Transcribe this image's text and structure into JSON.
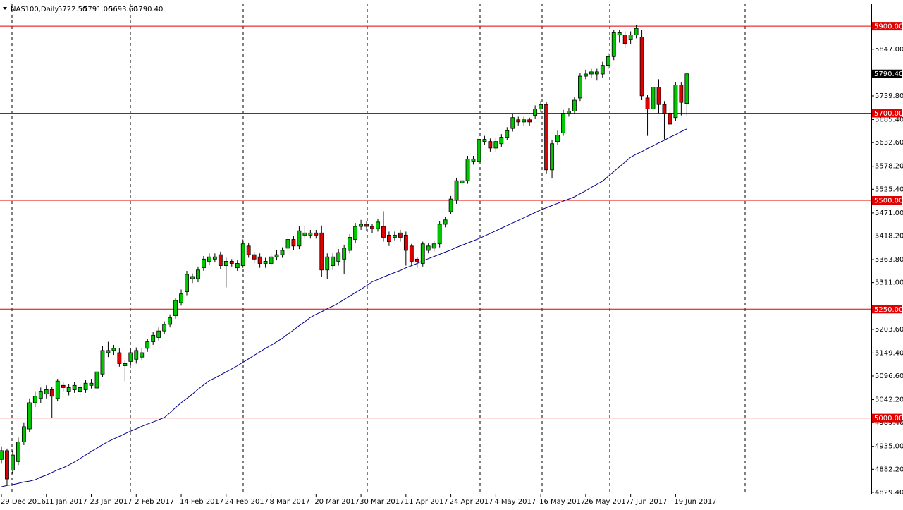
{
  "chart_data": {
    "type": "candlestick",
    "title": "NAS100,Daily",
    "header_labels": [
      "5722.50",
      "5791.00",
      "5693.60",
      "5790.40"
    ],
    "categories": [
      "29 Dec 2016",
      null,
      null,
      null,
      null,
      null,
      null,
      null,
      "11 Jan 2017",
      null,
      null,
      null,
      null,
      null,
      null,
      null,
      "23 Jan 2017",
      null,
      null,
      null,
      null,
      null,
      null,
      null,
      "2 Feb 2017",
      null,
      null,
      null,
      null,
      null,
      null,
      null,
      "14 Feb 2017",
      null,
      null,
      null,
      null,
      null,
      null,
      null,
      "24 Feb 2017",
      null,
      null,
      null,
      null,
      null,
      null,
      null,
      "8 Mar 2017",
      null,
      null,
      null,
      null,
      null,
      null,
      null,
      "20 Mar 2017",
      null,
      null,
      null,
      null,
      null,
      null,
      null,
      "30 Mar 2017",
      null,
      null,
      null,
      null,
      null,
      null,
      null,
      "11 Apr 2017",
      null,
      null,
      null,
      null,
      null,
      null,
      null,
      "24 Apr 2017",
      null,
      null,
      null,
      null,
      null,
      null,
      null,
      "4 May 2017",
      null,
      null,
      null,
      null,
      null,
      null,
      null,
      "16 May 2017",
      null,
      null,
      null,
      null,
      null,
      null,
      null,
      "26 May 2017",
      null,
      null,
      null,
      null,
      null,
      null,
      null,
      "7 Jun 2017",
      null,
      null,
      null,
      null,
      null,
      null,
      null,
      "19 Jun 2017",
      null,
      null
    ],
    "open": [
      4905,
      4925,
      4880,
      4900,
      4945,
      4975,
      5035,
      5045,
      5055,
      5065,
      5045,
      5075,
      5060,
      5065,
      5060,
      5065,
      5075,
      5069,
      5101,
      5150,
      5155,
      5150,
      5120,
      5130,
      5135,
      5140,
      5160,
      5175,
      5185,
      5200,
      5215,
      5235,
      5265,
      5290,
      5320,
      5320,
      5345,
      5360,
      5365,
      5375,
      5350,
      5360,
      5345,
      5350,
      5395,
      5375,
      5370,
      5355,
      5355,
      5370,
      5375,
      5390,
      5410,
      5395,
      5420,
      5420,
      5425,
      5425,
      5340,
      5350,
      5360,
      5365,
      5385,
      5410,
      5440,
      5445,
      5440,
      5435,
      5440,
      5420,
      5415,
      5425,
      5420,
      5395,
      5365,
      5355,
      5385,
      5390,
      5400,
      5445,
      5474,
      5500,
      5540,
      5545,
      5590,
      5590,
      5635,
      5635,
      5620,
      5630,
      5645,
      5665,
      5685,
      5680,
      5685,
      5695,
      5710,
      5720,
      5570,
      5635,
      5655,
      5700,
      5705,
      5735,
      5785,
      5790,
      5790,
      5790,
      5810,
      5830,
      5880,
      5880,
      5870,
      5880,
      5875,
      5735,
      5710,
      5760,
      5720,
      5700,
      5690,
      5765,
      5722.5
    ],
    "high": [
      4935,
      4930,
      4925,
      4955,
      4990,
      5045,
      5060,
      5070,
      5075,
      5072,
      5090,
      5082,
      5078,
      5082,
      5078,
      5088,
      5090,
      5112,
      5165,
      5175,
      5168,
      5160,
      5132,
      5160,
      5162,
      5160,
      5182,
      5198,
      5208,
      5222,
      5238,
      5275,
      5295,
      5338,
      5332,
      5348,
      5372,
      5378,
      5378,
      5382,
      5368,
      5365,
      5362,
      5410,
      5402,
      5382,
      5378,
      5368,
      5378,
      5385,
      5392,
      5418,
      5418,
      5440,
      5440,
      5432,
      5432,
      5442,
      5378,
      5380,
      5388,
      5398,
      5422,
      5448,
      5455,
      5452,
      5445,
      5458,
      5475,
      5428,
      5428,
      5432,
      5428,
      5400,
      5370,
      5405,
      5402,
      5408,
      5452,
      5462,
      5510,
      5552,
      5552,
      5602,
      5602,
      5648,
      5648,
      5642,
      5642,
      5652,
      5668,
      5698,
      5692,
      5692,
      5690,
      5718,
      5728,
      5725,
      5638,
      5660,
      5708,
      5712,
      5738,
      5792,
      5800,
      5802,
      5802,
      5818,
      5838,
      5892,
      5892,
      5888,
      5888,
      5902,
      5892,
      5742,
      5770,
      5778,
      5728,
      5708,
      5772,
      5772,
      5791
    ],
    "low": [
      4895,
      4845,
      4872,
      4892,
      4938,
      4968,
      5025,
      5035,
      5045,
      5000,
      5038,
      5060,
      5052,
      5058,
      5052,
      5058,
      5068,
      5062,
      5095,
      5140,
      5145,
      5118,
      5085,
      5122,
      5125,
      5132,
      5152,
      5168,
      5178,
      5192,
      5208,
      5228,
      5258,
      5282,
      5310,
      5312,
      5338,
      5352,
      5358,
      5342,
      5300,
      5348,
      5338,
      5345,
      5368,
      5355,
      5345,
      5345,
      5348,
      5362,
      5368,
      5385,
      5385,
      5388,
      5412,
      5412,
      5412,
      5325,
      5320,
      5340,
      5350,
      5330,
      5378,
      5402,
      5432,
      5430,
      5425,
      5428,
      5405,
      5395,
      5408,
      5405,
      5350,
      5350,
      5345,
      5348,
      5378,
      5382,
      5392,
      5438,
      5468,
      5492,
      5532,
      5538,
      5582,
      5582,
      5628,
      5612,
      5612,
      5622,
      5638,
      5658,
      5672,
      5672,
      5672,
      5688,
      5702,
      5562,
      5550,
      5628,
      5648,
      5692,
      5698,
      5728,
      5778,
      5782,
      5775,
      5782,
      5802,
      5822,
      5862,
      5850,
      5858,
      5872,
      5730,
      5648,
      5702,
      5700,
      5640,
      5665,
      5682,
      5695,
      5693.6
    ],
    "close": [
      4925,
      4860,
      4915,
      4945,
      4980,
      5035,
      5050,
      5060,
      5065,
      5050,
      5085,
      5070,
      5070,
      5075,
      5070,
      5080,
      5080,
      5106,
      5155,
      5155,
      5160,
      5125,
      5125,
      5150,
      5155,
      5150,
      5175,
      5190,
      5200,
      5215,
      5230,
      5270,
      5285,
      5330,
      5325,
      5340,
      5365,
      5370,
      5370,
      5350,
      5360,
      5355,
      5355,
      5400,
      5375,
      5365,
      5355,
      5360,
      5370,
      5375,
      5385,
      5410,
      5395,
      5430,
      5425,
      5425,
      5420,
      5340,
      5370,
      5370,
      5380,
      5390,
      5415,
      5440,
      5445,
      5440,
      5435,
      5450,
      5415,
      5405,
      5420,
      5415,
      5385,
      5360,
      5360,
      5400,
      5395,
      5400,
      5445,
      5455,
      5503,
      5545,
      5545,
      5595,
      5595,
      5640,
      5640,
      5620,
      5635,
      5645,
      5660,
      5690,
      5680,
      5685,
      5680,
      5710,
      5720,
      5570,
      5630,
      5650,
      5700,
      5705,
      5730,
      5785,
      5790,
      5795,
      5795,
      5810,
      5830,
      5885,
      5885,
      5860,
      5880,
      5895,
      5740,
      5710,
      5760,
      5720,
      5700,
      5675,
      5765,
      5725,
      5790.4
    ],
    "up_color": "#00c800",
    "down_color": "#e00000",
    "ma": {
      "color": "#00008b",
      "values": [
        4842,
        4845,
        4847,
        4850,
        4853,
        4855,
        4858,
        4864,
        4869,
        4875,
        4881,
        4886,
        4892,
        4899,
        4907,
        4915,
        4923,
        4931,
        4939,
        4946,
        4952,
        4958,
        4964,
        4970,
        4975,
        4981,
        4986,
        4991,
        4996,
        5001,
        5012,
        5024,
        5035,
        5045,
        5055,
        5066,
        5076,
        5086,
        5092,
        5099,
        5106,
        5113,
        5120,
        5128,
        5136,
        5144,
        5152,
        5160,
        5167,
        5175,
        5183,
        5193,
        5202,
        5212,
        5221,
        5231,
        5238,
        5244,
        5251,
        5257,
        5264,
        5272,
        5280,
        5288,
        5296,
        5304,
        5313,
        5318,
        5324,
        5329,
        5334,
        5339,
        5345,
        5350,
        5355,
        5361,
        5366,
        5371,
        5376,
        5381,
        5386,
        5392,
        5397,
        5402,
        5407,
        5412,
        5418,
        5424,
        5430,
        5436,
        5442,
        5448,
        5454,
        5460,
        5466,
        5472,
        5478,
        5483,
        5488,
        5493,
        5498,
        5503,
        5508,
        5515,
        5522,
        5530,
        5537,
        5544,
        5555,
        5566,
        5577,
        5588,
        5599,
        5606,
        5612,
        5619,
        5625,
        5632,
        5638,
        5645,
        5651,
        5658,
        5664
      ]
    },
    "ylim": [
      4826,
      5952
    ],
    "yticks": [
      {
        "value": 5847,
        "label": "5847.00"
      },
      {
        "value": 5739.8,
        "label": "5739.80"
      },
      {
        "value": 5685.4,
        "label": "5685.40"
      },
      {
        "value": 5632.6,
        "label": "5632.60"
      },
      {
        "value": 5578.2,
        "label": "5578.20"
      },
      {
        "value": 5525.4,
        "label": "5525.40"
      },
      {
        "value": 5471,
        "label": "5471.00"
      },
      {
        "value": 5418.2,
        "label": "5418.20"
      },
      {
        "value": 5363.8,
        "label": "5363.80"
      },
      {
        "value": 5311,
        "label": "5311.00"
      },
      {
        "value": 5203.6,
        "label": "5203.60"
      },
      {
        "value": 5149.4,
        "label": "5149.40"
      },
      {
        "value": 5096.6,
        "label": "5096.60"
      },
      {
        "value": 5042.2,
        "label": "5042.20"
      },
      {
        "value": 4989.4,
        "label": "4989.40"
      },
      {
        "value": 4935,
        "label": "4935.00"
      },
      {
        "value": 4882.2,
        "label": "4882.20"
      },
      {
        "value": 4829.4,
        "label": "4829.40"
      }
    ],
    "levels": [
      {
        "value": 5900,
        "label": "5900.00"
      },
      {
        "value": 5700,
        "label": "5700.00"
      },
      {
        "value": 5500,
        "label": "5500.00"
      },
      {
        "value": 5250,
        "label": "5250.00"
      },
      {
        "value": 5000,
        "label": "5000.00"
      }
    ],
    "level_color": "#e00000",
    "last_price": {
      "value": 5790.4,
      "label": "5790.40"
    }
  }
}
